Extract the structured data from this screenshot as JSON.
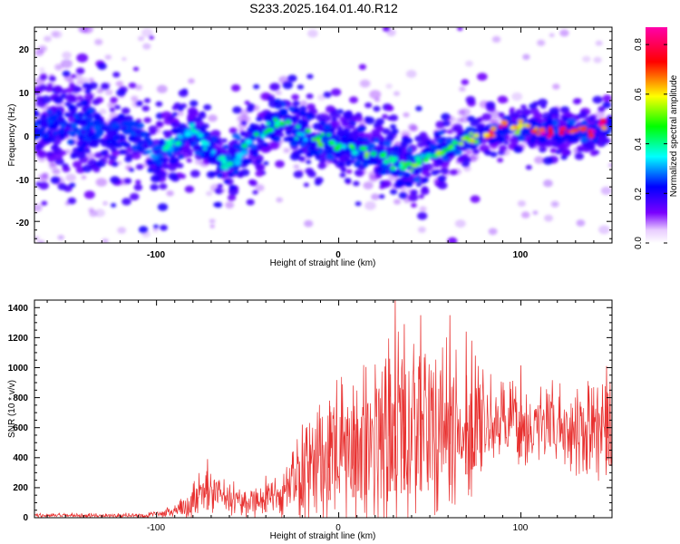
{
  "figure": {
    "title": "S233.2025.164.01.40.R12"
  },
  "chart_data": [
    {
      "type": "heatmap",
      "panel": "spectrogram",
      "xlabel": "Height of straight line (km)",
      "ylabel": "Frequency (Hz)",
      "xlim": [
        -167,
        150
      ],
      "ylim": [
        -25,
        25
      ],
      "xticks": [
        -100,
        0,
        100
      ],
      "xtick_labels": [
        "-100",
        "0",
        "100"
      ],
      "yticks": [
        -20,
        -10,
        0,
        10,
        20
      ],
      "ytick_labels": [
        "-20",
        "-10",
        "0",
        "10",
        "20"
      ],
      "colorbar": {
        "label": "Normalized spectral amplitude",
        "range": [
          0.0,
          0.87
        ],
        "ticks": [
          0.0,
          0.2,
          0.4,
          0.6,
          0.8
        ],
        "tick_labels": [
          "0.0",
          "0.2",
          "0.4",
          "0.6",
          "0.8"
        ],
        "colormap": [
          "#ffffff",
          "#7a00ff",
          "#0000ff",
          "#00ffff",
          "#00ff00",
          "#ffff00",
          "#ff0000",
          "#ff00aa"
        ]
      },
      "ridge": {
        "x": [
          -167,
          -150,
          -130,
          -110,
          -100,
          -95,
          -90,
          -85,
          -80,
          -75,
          -70,
          -65,
          -60,
          -55,
          -50,
          -45,
          -40,
          -35,
          -30,
          -25,
          -20,
          -10,
          0,
          10,
          20,
          30,
          35,
          40,
          45,
          50,
          55,
          60,
          70,
          80,
          90,
          100,
          110,
          120,
          130,
          140,
          150
        ],
        "freq": [
          3,
          2,
          1,
          0,
          -5,
          -3,
          -2,
          0,
          1,
          -1,
          -4,
          -6,
          -7,
          -5,
          -2,
          0,
          1,
          3,
          4,
          2,
          0,
          -1,
          -2,
          -3,
          -4,
          -6,
          -7,
          -7,
          -6,
          -5,
          -4,
          -3,
          -1,
          0,
          1,
          2,
          1,
          1,
          1,
          1,
          2
        ],
        "amplitude": [
          0.15,
          0.15,
          0.2,
          0.2,
          0.3,
          0.35,
          0.4,
          0.4,
          0.35,
          0.35,
          0.3,
          0.35,
          0.35,
          0.35,
          0.4,
          0.45,
          0.4,
          0.45,
          0.4,
          0.35,
          0.4,
          0.5,
          0.45,
          0.45,
          0.5,
          0.4,
          0.45,
          0.5,
          0.45,
          0.45,
          0.5,
          0.45,
          0.55,
          0.75,
          0.85,
          0.65,
          0.8,
          0.85,
          0.8,
          0.85,
          0.7
        ]
      }
    },
    {
      "type": "line",
      "panel": "snr",
      "xlabel": "Height of straight line (km)",
      "ylabel": "SNR (10 * v/v)",
      "xlim": [
        -167,
        150
      ],
      "ylim": [
        0,
        1450
      ],
      "xticks": [
        -100,
        0,
        100
      ],
      "xtick_labels": [
        "-100",
        "0",
        "100"
      ],
      "yticks": [
        0,
        200,
        400,
        600,
        800,
        1000,
        1200,
        1400
      ],
      "ytick_labels": [
        "0",
        "200",
        "400",
        "600",
        "800",
        "1000",
        "1200",
        "1400"
      ],
      "series": [
        {
          "color": "#e8302f",
          "x": [
            -167,
            -130,
            -110,
            -100,
            -90,
            -85,
            -80,
            -75,
            -70,
            -60,
            -50,
            -40,
            -30,
            -25,
            -20,
            -15,
            -10,
            -5,
            0,
            10,
            20,
            25,
            30,
            40,
            50,
            60,
            70,
            80,
            90,
            100,
            110,
            120,
            130,
            140,
            150
          ],
          "mean": [
            15,
            15,
            15,
            20,
            40,
            60,
            90,
            140,
            170,
            130,
            110,
            110,
            150,
            220,
            280,
            300,
            350,
            400,
            420,
            480,
            520,
            560,
            600,
            620,
            600,
            600,
            600,
            620,
            650,
            600,
            600,
            620,
            600,
            580,
            600
          ],
          "spread": [
            15,
            15,
            20,
            25,
            60,
            90,
            140,
            200,
            160,
            120,
            110,
            120,
            160,
            250,
            330,
            370,
            420,
            470,
            520,
            560,
            600,
            650,
            700,
            720,
            700,
            650,
            520,
            360,
            320,
            320,
            300,
            320,
            320,
            340,
            360
          ],
          "peaks": [
            [
              -72,
              390
            ],
            [
              -40,
              280
            ],
            [
              -20,
              620
            ],
            [
              -5,
              780
            ],
            [
              8,
              880
            ],
            [
              15,
              1005
            ],
            [
              28,
              1060
            ],
            [
              31,
              1450
            ],
            [
              36,
              1290
            ],
            [
              45,
              1350
            ],
            [
              61,
              1350
            ],
            [
              70,
              1240
            ],
            [
              73,
              1180
            ],
            [
              75,
              1080
            ],
            [
              100,
              1015
            ],
            [
              147,
              1010
            ]
          ]
        }
      ]
    }
  ]
}
